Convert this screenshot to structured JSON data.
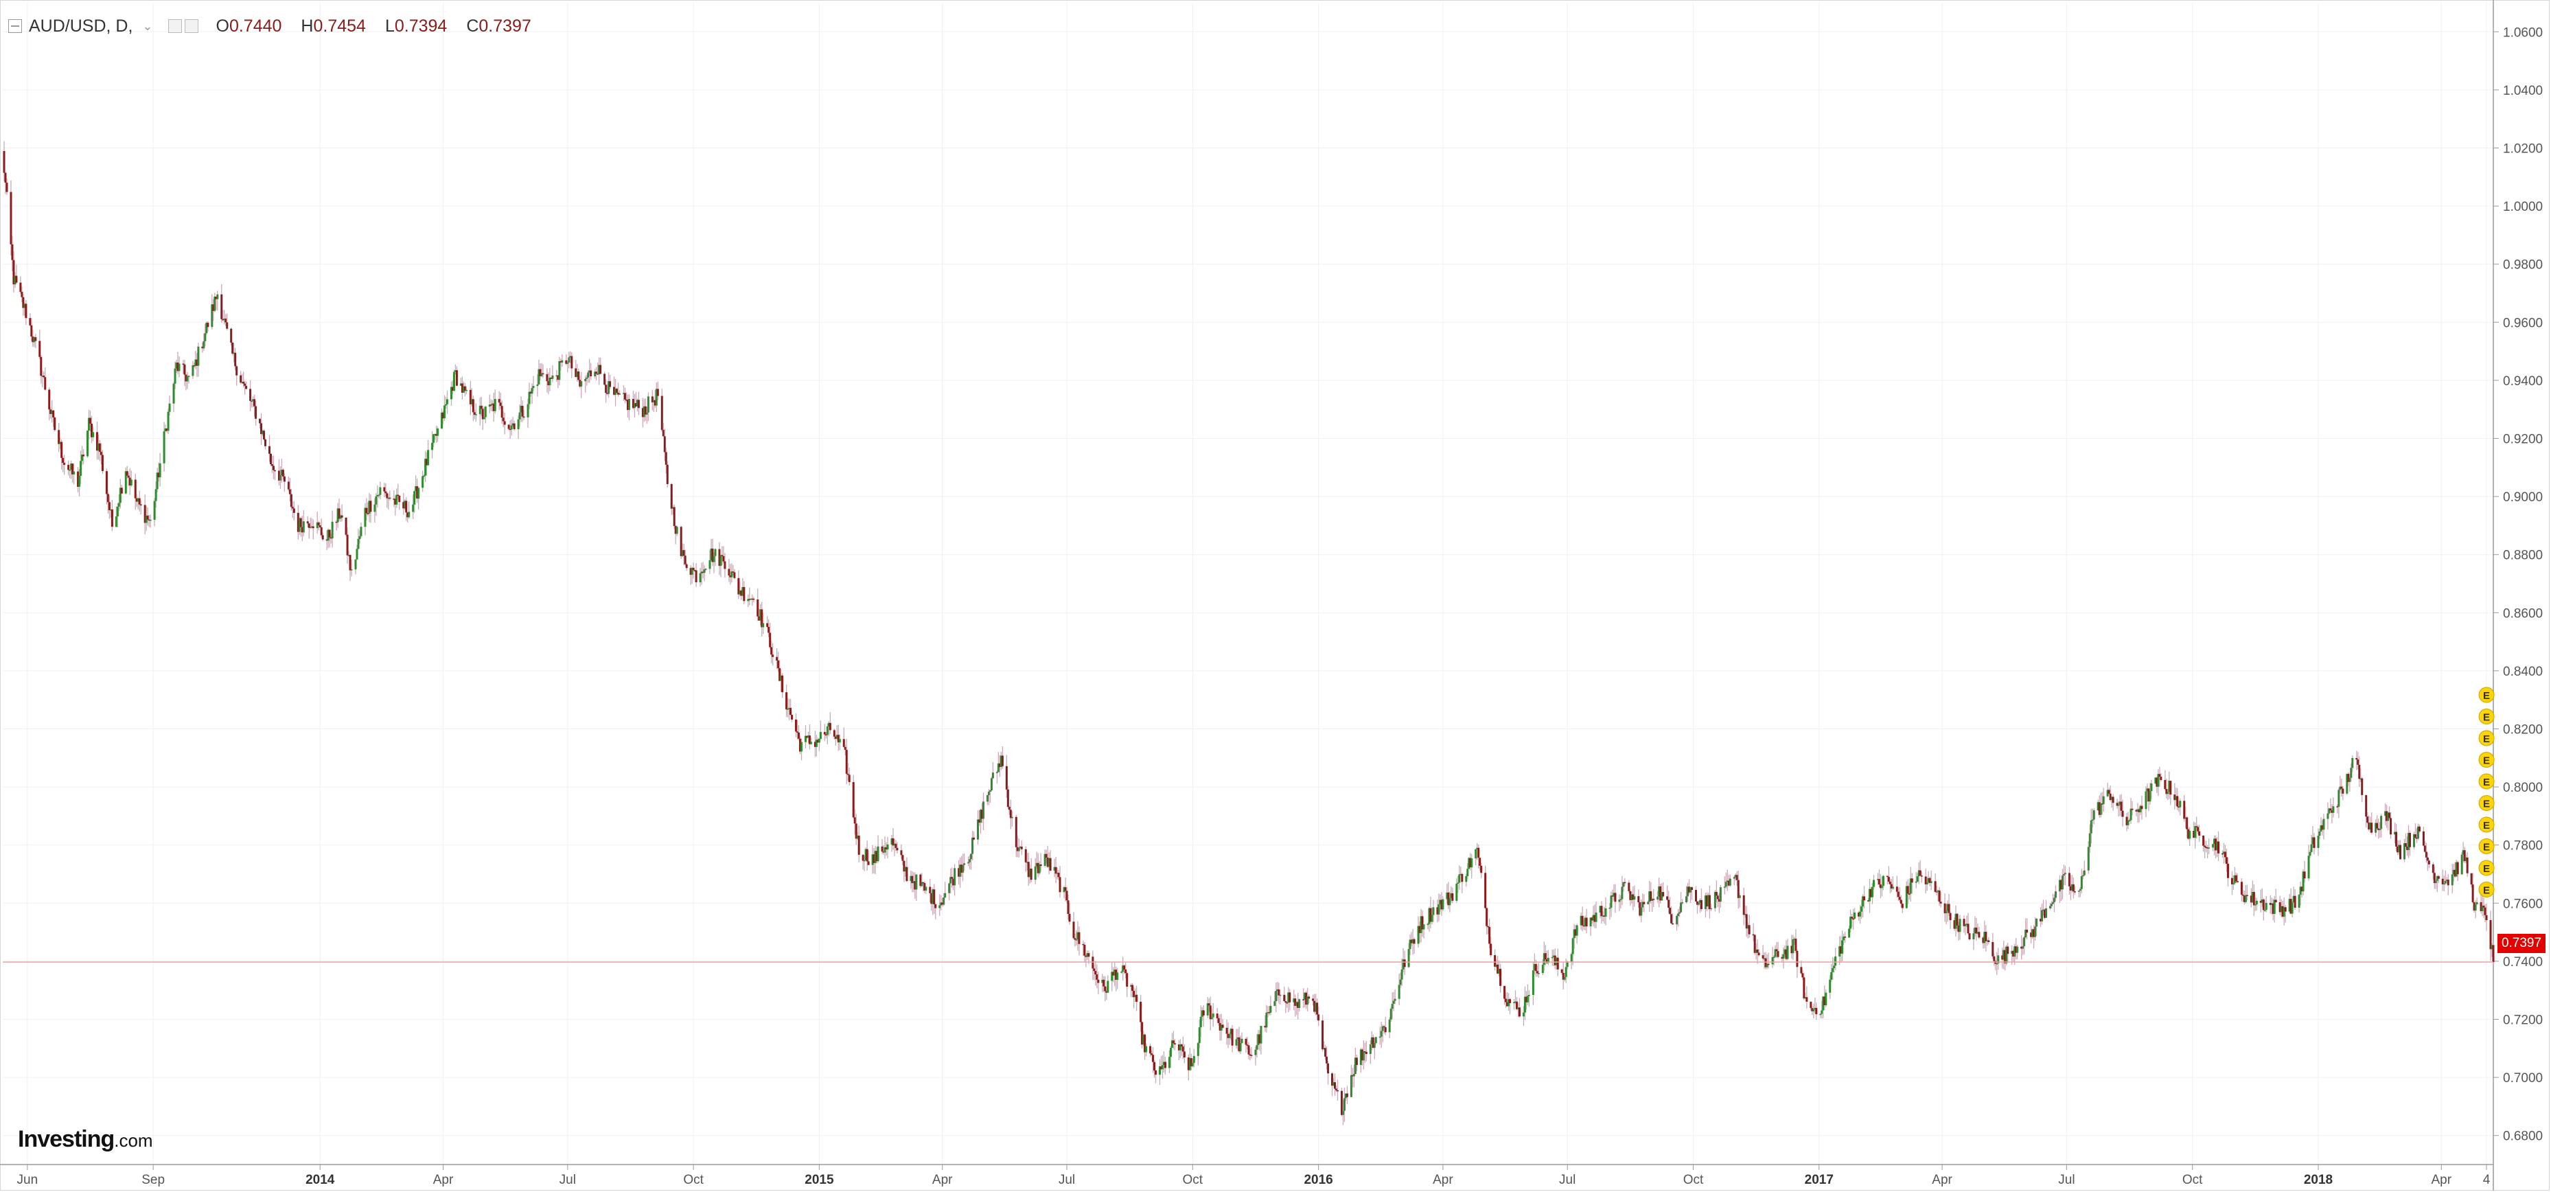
{
  "legend": {
    "symbol": "AUD/USD, D,",
    "open_label": "O",
    "open": "0.7440",
    "high_label": "H",
    "high": "0.7454",
    "low_label": "L",
    "low": "0.7394",
    "close_label": "C",
    "close": "0.7397"
  },
  "logo": {
    "brand": "Investing",
    "suffix": ".com"
  },
  "last_price_label": "0.7397",
  "event_marker_letter": "E",
  "event_marker_count": 10,
  "colors": {
    "up": "#2e8b2e",
    "down": "#8b1a1a",
    "wick": "#c9a9b5",
    "grid": "#f0f0f0",
    "last_price_line": "#f4a0a0",
    "last_price_tag": "#e50000",
    "event_marker": "#ffd400"
  },
  "chart_data": {
    "type": "candlestick",
    "symbol": "AUD/USD",
    "interval": "D",
    "ylim": [
      0.67,
      1.07
    ],
    "y_ticks": [
      "0.6800",
      "0.7000",
      "0.7200",
      "0.7400",
      "0.7600",
      "0.7800",
      "0.8000",
      "0.8200",
      "0.8400",
      "0.8600",
      "0.8800",
      "0.9000",
      "0.9200",
      "0.9400",
      "0.9600",
      "0.9800",
      "1.0000",
      "1.0200",
      "1.0400",
      "1.0600"
    ],
    "x_ticks": [
      {
        "label": "Jun",
        "date": "2013-06-01"
      },
      {
        "label": "Sep",
        "date": "2013-09-01"
      },
      {
        "label": "2014",
        "date": "2014-01-01"
      },
      {
        "label": "Apr",
        "date": "2014-04-01"
      },
      {
        "label": "Jul",
        "date": "2014-07-01"
      },
      {
        "label": "Oct",
        "date": "2014-10-01"
      },
      {
        "label": "2015",
        "date": "2015-01-01"
      },
      {
        "label": "Apr",
        "date": "2015-04-01"
      },
      {
        "label": "Jul",
        "date": "2015-07-01"
      },
      {
        "label": "Oct",
        "date": "2015-10-01"
      },
      {
        "label": "2016",
        "date": "2016-01-01"
      },
      {
        "label": "Apr",
        "date": "2016-04-01"
      },
      {
        "label": "Jul",
        "date": "2016-07-01"
      },
      {
        "label": "Oct",
        "date": "2016-10-01"
      },
      {
        "label": "2017",
        "date": "2017-01-01"
      },
      {
        "label": "Apr",
        "date": "2017-04-01"
      },
      {
        "label": "Jul",
        "date": "2017-07-01"
      },
      {
        "label": "Oct",
        "date": "2017-10-01"
      },
      {
        "label": "2018",
        "date": "2018-01-01"
      },
      {
        "label": "Apr",
        "date": "2018-04-01"
      },
      {
        "label": "4",
        "date": "2018-05-04"
      }
    ],
    "x_range": [
      "2013-05-14",
      "2018-05-09"
    ],
    "price_path": [
      [
        "2013-05-14",
        1.018
      ],
      [
        "2013-05-22",
        0.975
      ],
      [
        "2013-06-01",
        0.962
      ],
      [
        "2013-06-10",
        0.946
      ],
      [
        "2013-06-20",
        0.925
      ],
      [
        "2013-06-28",
        0.912
      ],
      [
        "2013-07-08",
        0.905
      ],
      [
        "2013-07-16",
        0.925
      ],
      [
        "2013-07-24",
        0.916
      ],
      [
        "2013-08-02",
        0.89
      ],
      [
        "2013-08-12",
        0.91
      ],
      [
        "2013-08-20",
        0.898
      ],
      [
        "2013-08-30",
        0.891
      ],
      [
        "2013-09-09",
        0.92
      ],
      [
        "2013-09-18",
        0.945
      ],
      [
        "2013-09-28",
        0.94
      ],
      [
        "2013-10-08",
        0.955
      ],
      [
        "2013-10-18",
        0.97
      ],
      [
        "2013-10-28",
        0.95
      ],
      [
        "2013-11-06",
        0.938
      ],
      [
        "2013-11-16",
        0.928
      ],
      [
        "2013-11-26",
        0.912
      ],
      [
        "2013-12-06",
        0.905
      ],
      [
        "2013-12-16",
        0.89
      ],
      [
        "2013-12-26",
        0.892
      ],
      [
        "2014-01-06",
        0.885
      ],
      [
        "2014-01-16",
        0.895
      ],
      [
        "2014-01-24",
        0.873
      ],
      [
        "2014-02-03",
        0.895
      ],
      [
        "2014-02-14",
        0.902
      ],
      [
        "2014-02-26",
        0.898
      ],
      [
        "2014-03-08",
        0.895
      ],
      [
        "2014-03-20",
        0.912
      ],
      [
        "2014-03-30",
        0.925
      ],
      [
        "2014-04-10",
        0.942
      ],
      [
        "2014-04-20",
        0.932
      ],
      [
        "2014-04-30",
        0.928
      ],
      [
        "2014-05-10",
        0.932
      ],
      [
        "2014-05-20",
        0.924
      ],
      [
        "2014-05-30",
        0.93
      ],
      [
        "2014-06-10",
        0.942
      ],
      [
        "2014-06-20",
        0.94
      ],
      [
        "2014-07-01",
        0.948
      ],
      [
        "2014-07-10",
        0.938
      ],
      [
        "2014-07-22",
        0.945
      ],
      [
        "2014-08-02",
        0.935
      ],
      [
        "2014-08-14",
        0.932
      ],
      [
        "2014-08-26",
        0.93
      ],
      [
        "2014-09-05",
        0.935
      ],
      [
        "2014-09-12",
        0.905
      ],
      [
        "2014-09-22",
        0.88
      ],
      [
        "2014-10-03",
        0.873
      ],
      [
        "2014-10-14",
        0.88
      ],
      [
        "2014-10-24",
        0.878
      ],
      [
        "2014-11-03",
        0.868
      ],
      [
        "2014-11-14",
        0.865
      ],
      [
        "2014-11-26",
        0.85
      ],
      [
        "2014-12-06",
        0.832
      ],
      [
        "2014-12-18",
        0.815
      ],
      [
        "2014-12-30",
        0.816
      ],
      [
        "2015-01-10",
        0.82
      ],
      [
        "2015-01-20",
        0.81
      ],
      [
        "2015-01-30",
        0.778
      ],
      [
        "2015-02-10",
        0.775
      ],
      [
        "2015-02-22",
        0.782
      ],
      [
        "2015-03-06",
        0.77
      ],
      [
        "2015-03-18",
        0.765
      ],
      [
        "2015-03-30",
        0.76
      ],
      [
        "2015-04-10",
        0.77
      ],
      [
        "2015-04-22",
        0.778
      ],
      [
        "2015-05-02",
        0.795
      ],
      [
        "2015-05-14",
        0.81
      ],
      [
        "2015-05-24",
        0.782
      ],
      [
        "2015-06-04",
        0.77
      ],
      [
        "2015-06-16",
        0.775
      ],
      [
        "2015-06-28",
        0.765
      ],
      [
        "2015-07-06",
        0.75
      ],
      [
        "2015-07-16",
        0.742
      ],
      [
        "2015-07-28",
        0.73
      ],
      [
        "2015-08-08",
        0.738
      ],
      [
        "2015-08-18",
        0.73
      ],
      [
        "2015-08-26",
        0.712
      ],
      [
        "2015-09-06",
        0.7
      ],
      [
        "2015-09-18",
        0.712
      ],
      [
        "2015-09-30",
        0.703
      ],
      [
        "2015-10-10",
        0.725
      ],
      [
        "2015-10-22",
        0.718
      ],
      [
        "2015-11-02",
        0.712
      ],
      [
        "2015-11-14",
        0.708
      ],
      [
        "2015-11-24",
        0.72
      ],
      [
        "2015-12-04",
        0.73
      ],
      [
        "2015-12-16",
        0.725
      ],
      [
        "2015-12-28",
        0.728
      ],
      [
        "2016-01-08",
        0.7
      ],
      [
        "2016-01-18",
        0.69
      ],
      [
        "2016-01-28",
        0.705
      ],
      [
        "2016-02-08",
        0.712
      ],
      [
        "2016-02-20",
        0.718
      ],
      [
        "2016-03-04",
        0.74
      ],
      [
        "2016-03-14",
        0.752
      ],
      [
        "2016-03-26",
        0.758
      ],
      [
        "2016-04-06",
        0.762
      ],
      [
        "2016-04-18",
        0.772
      ],
      [
        "2016-04-26",
        0.778
      ],
      [
        "2016-05-06",
        0.745
      ],
      [
        "2016-05-18",
        0.727
      ],
      [
        "2016-05-28",
        0.722
      ],
      [
        "2016-06-08",
        0.738
      ],
      [
        "2016-06-18",
        0.742
      ],
      [
        "2016-06-28",
        0.735
      ],
      [
        "2016-07-08",
        0.752
      ],
      [
        "2016-07-20",
        0.755
      ],
      [
        "2016-08-02",
        0.76
      ],
      [
        "2016-08-12",
        0.765
      ],
      [
        "2016-08-24",
        0.758
      ],
      [
        "2016-09-05",
        0.765
      ],
      [
        "2016-09-16",
        0.755
      ],
      [
        "2016-09-28",
        0.765
      ],
      [
        "2016-10-08",
        0.76
      ],
      [
        "2016-10-20",
        0.762
      ],
      [
        "2016-11-01",
        0.768
      ],
      [
        "2016-11-10",
        0.752
      ],
      [
        "2016-11-20",
        0.738
      ],
      [
        "2016-12-02",
        0.742
      ],
      [
        "2016-12-14",
        0.745
      ],
      [
        "2016-12-24",
        0.723
      ],
      [
        "2017-01-04",
        0.725
      ],
      [
        "2017-01-14",
        0.742
      ],
      [
        "2017-01-26",
        0.755
      ],
      [
        "2017-02-08",
        0.765
      ],
      [
        "2017-02-20",
        0.768
      ],
      [
        "2017-03-02",
        0.76
      ],
      [
        "2017-03-14",
        0.77
      ],
      [
        "2017-03-26",
        0.765
      ],
      [
        "2017-04-08",
        0.755
      ],
      [
        "2017-04-20",
        0.75
      ],
      [
        "2017-05-02",
        0.748
      ],
      [
        "2017-05-12",
        0.74
      ],
      [
        "2017-05-24",
        0.745
      ],
      [
        "2017-06-06",
        0.75
      ],
      [
        "2017-06-18",
        0.76
      ],
      [
        "2017-06-30",
        0.768
      ],
      [
        "2017-07-10",
        0.762
      ],
      [
        "2017-07-20",
        0.79
      ],
      [
        "2017-08-02",
        0.798
      ],
      [
        "2017-08-14",
        0.788
      ],
      [
        "2017-08-26",
        0.795
      ],
      [
        "2017-09-06",
        0.802
      ],
      [
        "2017-09-18",
        0.798
      ],
      [
        "2017-09-28",
        0.785
      ],
      [
        "2017-10-10",
        0.782
      ],
      [
        "2017-10-20",
        0.78
      ],
      [
        "2017-10-30",
        0.768
      ],
      [
        "2017-11-10",
        0.762
      ],
      [
        "2017-11-22",
        0.76
      ],
      [
        "2017-12-04",
        0.758
      ],
      [
        "2017-12-16",
        0.76
      ],
      [
        "2017-12-28",
        0.78
      ],
      [
        "2018-01-10",
        0.792
      ],
      [
        "2018-01-20",
        0.8
      ],
      [
        "2018-01-28",
        0.81
      ],
      [
        "2018-02-08",
        0.786
      ],
      [
        "2018-02-20",
        0.79
      ],
      [
        "2018-03-02",
        0.778
      ],
      [
        "2018-03-14",
        0.785
      ],
      [
        "2018-03-26",
        0.77
      ],
      [
        "2018-04-06",
        0.768
      ],
      [
        "2018-04-18",
        0.776
      ],
      [
        "2018-04-26",
        0.758
      ],
      [
        "2018-05-04",
        0.756
      ],
      [
        "2018-05-09",
        0.7397
      ]
    ],
    "last_price": 0.7397
  }
}
